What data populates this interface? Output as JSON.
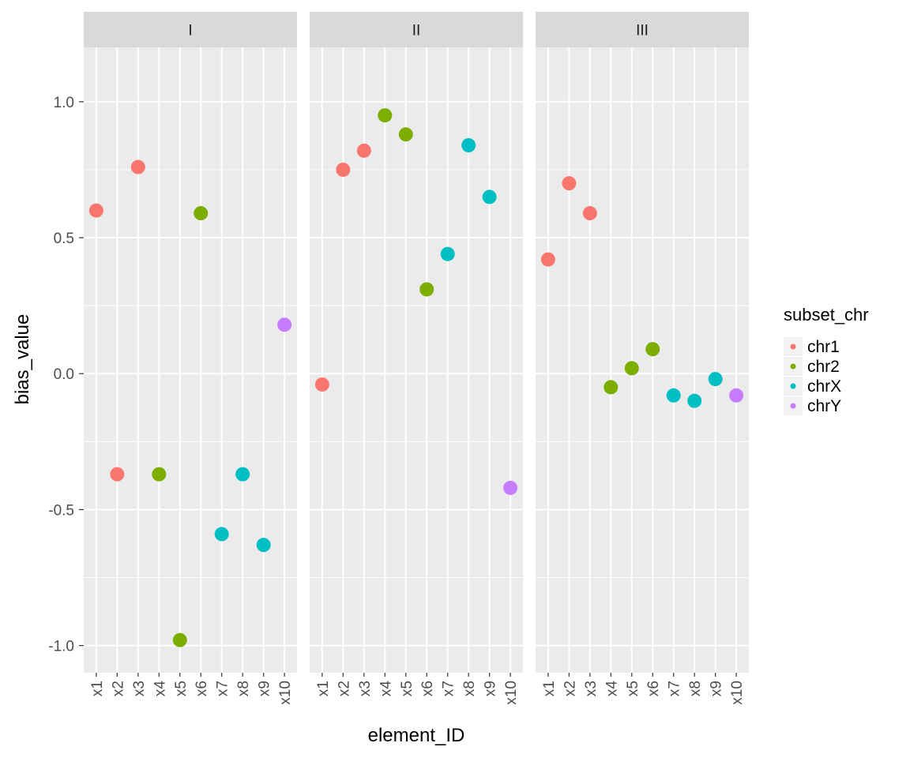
{
  "chart_data": {
    "type": "scatter",
    "facet_by": "panel",
    "panels": [
      "I",
      "II",
      "III"
    ],
    "categories": [
      "x1",
      "x2",
      "x3",
      "x4",
      "x5",
      "x6",
      "x7",
      "x8",
      "x9",
      "x10"
    ],
    "xlabel": "element_ID",
    "ylabel": "bias_value",
    "ylim": [
      -1.1,
      1.2
    ],
    "yticks": [
      -1.0,
      -0.5,
      0.0,
      0.5,
      1.0
    ],
    "ytick_labels": [
      "-1.0",
      "-0.5",
      "0.0",
      "0.5",
      "1.0"
    ],
    "grid": true,
    "legend": {
      "title": "subset_chr",
      "position": "right",
      "entries": [
        {
          "name": "chr1",
          "color": "#F8766D"
        },
        {
          "name": "chr2",
          "color": "#7CAE00"
        },
        {
          "name": "chrX",
          "color": "#00BFC4"
        },
        {
          "name": "chrY",
          "color": "#C77CFF"
        }
      ]
    },
    "series": [
      {
        "panel": "I",
        "points": [
          {
            "x": "x1",
            "y": 0.6,
            "chr": "chr1"
          },
          {
            "x": "x2",
            "y": -0.37,
            "chr": "chr1"
          },
          {
            "x": "x3",
            "y": 0.76,
            "chr": "chr1"
          },
          {
            "x": "x4",
            "y": -0.37,
            "chr": "chr2"
          },
          {
            "x": "x5",
            "y": -0.98,
            "chr": "chr2"
          },
          {
            "x": "x6",
            "y": 0.59,
            "chr": "chr2"
          },
          {
            "x": "x7",
            "y": -0.59,
            "chr": "chrX"
          },
          {
            "x": "x8",
            "y": -0.37,
            "chr": "chrX"
          },
          {
            "x": "x9",
            "y": -0.63,
            "chr": "chrX"
          },
          {
            "x": "x10",
            "y": 0.18,
            "chr": "chrY"
          }
        ]
      },
      {
        "panel": "II",
        "points": [
          {
            "x": "x1",
            "y": -0.04,
            "chr": "chr1"
          },
          {
            "x": "x2",
            "y": 0.75,
            "chr": "chr1"
          },
          {
            "x": "x3",
            "y": 0.82,
            "chr": "chr1"
          },
          {
            "x": "x4",
            "y": 0.95,
            "chr": "chr2"
          },
          {
            "x": "x5",
            "y": 0.88,
            "chr": "chr2"
          },
          {
            "x": "x6",
            "y": 0.31,
            "chr": "chr2"
          },
          {
            "x": "x7",
            "y": 0.44,
            "chr": "chrX"
          },
          {
            "x": "x8",
            "y": 0.84,
            "chr": "chrX"
          },
          {
            "x": "x9",
            "y": 0.65,
            "chr": "chrX"
          },
          {
            "x": "x10",
            "y": -0.42,
            "chr": "chrY"
          }
        ]
      },
      {
        "panel": "III",
        "points": [
          {
            "x": "x1",
            "y": 0.42,
            "chr": "chr1"
          },
          {
            "x": "x2",
            "y": 0.7,
            "chr": "chr1"
          },
          {
            "x": "x3",
            "y": 0.59,
            "chr": "chr1"
          },
          {
            "x": "x4",
            "y": -0.05,
            "chr": "chr2"
          },
          {
            "x": "x5",
            "y": 0.02,
            "chr": "chr2"
          },
          {
            "x": "x6",
            "y": 0.09,
            "chr": "chr2"
          },
          {
            "x": "x7",
            "y": -0.08,
            "chr": "chrX"
          },
          {
            "x": "x8",
            "y": -0.1,
            "chr": "chrX"
          },
          {
            "x": "x9",
            "y": -0.02,
            "chr": "chrX"
          },
          {
            "x": "x10",
            "y": -0.08,
            "chr": "chrY"
          }
        ]
      }
    ]
  }
}
